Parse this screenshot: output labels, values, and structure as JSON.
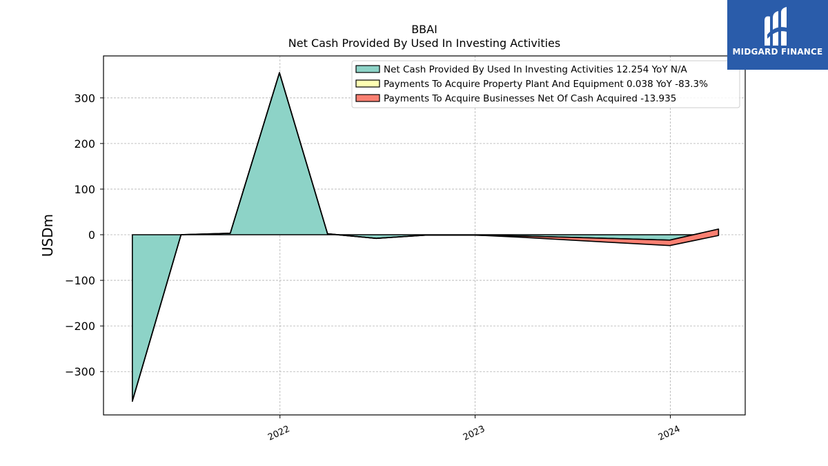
{
  "logo": {
    "text": "MIDGARD FINANCE",
    "background": "#2a5caa"
  },
  "chart_data": {
    "type": "area",
    "title": "BBAI",
    "subtitle": "Net Cash Provided By Used In Investing Activities",
    "xlabel": "",
    "ylabel": "USDm",
    "xlim": [
      "2021-02-05",
      "2024-05-20"
    ],
    "ylim": [
      -395,
      392
    ],
    "yticks": [
      -300,
      -200,
      -100,
      0,
      100,
      200,
      300
    ],
    "xticks": [
      {
        "date": "2022-01-01",
        "label": "2022"
      },
      {
        "date": "2023-01-01",
        "label": "2023"
      },
      {
        "date": "2024-01-01",
        "label": "2024"
      }
    ],
    "grid": true,
    "legend_position": "top-right",
    "series": [
      {
        "name": "Net Cash Provided By Used In Investing Activities  12.254 YoY N/A",
        "color": "#8dd3c7",
        "points": [
          {
            "x": "2021-03-31",
            "y": -365
          },
          {
            "x": "2021-06-30",
            "y": 0
          },
          {
            "x": "2021-09-30",
            "y": 3
          },
          {
            "x": "2021-12-31",
            "y": 355
          },
          {
            "x": "2022-03-31",
            "y": 2
          },
          {
            "x": "2022-06-30",
            "y": -8
          },
          {
            "x": "2022-09-30",
            "y": -1
          },
          {
            "x": "2022-12-31",
            "y": -1
          },
          {
            "x": "2023-03-31",
            "y": -3
          },
          {
            "x": "2023-06-30",
            "y": -6
          },
          {
            "x": "2023-09-30",
            "y": -9
          },
          {
            "x": "2023-12-31",
            "y": -12
          },
          {
            "x": "2024-03-31",
            "y": 12.254
          }
        ]
      },
      {
        "name": "Payments To Acquire Property Plant And Equipment  0.038 YoY -83.3%",
        "color": "#ffffb3",
        "points": [
          {
            "x": "2021-03-31",
            "y": 0.2
          },
          {
            "x": "2021-06-30",
            "y": 0.2
          },
          {
            "x": "2021-09-30",
            "y": 0.3
          },
          {
            "x": "2021-12-31",
            "y": 0.3
          },
          {
            "x": "2022-03-31",
            "y": 0.2
          },
          {
            "x": "2022-06-30",
            "y": 0.2
          },
          {
            "x": "2022-09-30",
            "y": 0.2
          },
          {
            "x": "2022-12-31",
            "y": 0.2
          },
          {
            "x": "2023-03-31",
            "y": 0.2
          },
          {
            "x": "2023-06-30",
            "y": 0.2
          },
          {
            "x": "2023-09-30",
            "y": 0.2
          },
          {
            "x": "2023-12-31",
            "y": 0.2
          },
          {
            "x": "2024-03-31",
            "y": 0.038
          }
        ]
      },
      {
        "name": "Payments To Acquire Businesses Net Of Cash Acquired  -13.935",
        "color": "#fb8072",
        "points": [
          {
            "x": "2021-03-31",
            "y": 0
          },
          {
            "x": "2021-06-30",
            "y": 0
          },
          {
            "x": "2021-09-30",
            "y": 0
          },
          {
            "x": "2021-12-31",
            "y": 0
          },
          {
            "x": "2022-03-31",
            "y": 0
          },
          {
            "x": "2022-06-30",
            "y": 0
          },
          {
            "x": "2022-09-30",
            "y": 0
          },
          {
            "x": "2022-12-31",
            "y": 0
          },
          {
            "x": "2023-03-31",
            "y": -3
          },
          {
            "x": "2023-06-30",
            "y": -6
          },
          {
            "x": "2023-09-30",
            "y": -9
          },
          {
            "x": "2023-12-31",
            "y": -12
          },
          {
            "x": "2024-03-31",
            "y": -13.935
          }
        ]
      }
    ]
  }
}
